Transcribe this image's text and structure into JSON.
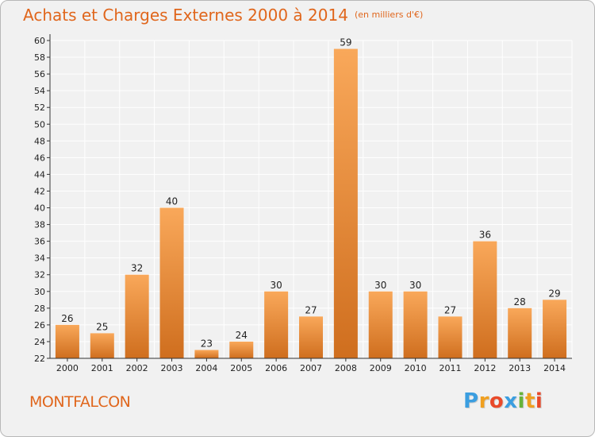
{
  "title": {
    "main": "Achats et Charges Externes 2000 à 2014",
    "subtitle": "(en milliers d'€)"
  },
  "commune": "MONTFALCON",
  "logo": {
    "letters": [
      "P",
      "r",
      "o",
      "x",
      "i",
      "t",
      "i"
    ],
    "colors": [
      "#3b9ee0",
      "#f0a020",
      "#e94a2a",
      "#3b9ee0",
      "#67b33a",
      "#f0a020",
      "#e94a2a"
    ]
  },
  "colors": {
    "title": "#e0661c",
    "bar_top": "#f9a85a",
    "bar_bottom": "#cf6e1e",
    "grid": "#ffffff",
    "axis": "#333333"
  },
  "chart_data": {
    "type": "bar",
    "title": "Achats et Charges Externes 2000 à 2014",
    "subtitle": "(en milliers d'€)",
    "categories": [
      "2000",
      "2001",
      "2002",
      "2003",
      "2004",
      "2005",
      "2006",
      "2007",
      "2008",
      "2009",
      "2010",
      "2011",
      "2012",
      "2013",
      "2014"
    ],
    "values": [
      26,
      25,
      32,
      40,
      23,
      24,
      30,
      27,
      59,
      30,
      30,
      27,
      36,
      28,
      29
    ],
    "ylim": [
      22,
      60
    ],
    "ytick_step": 2,
    "grid": true,
    "legend": "none"
  }
}
